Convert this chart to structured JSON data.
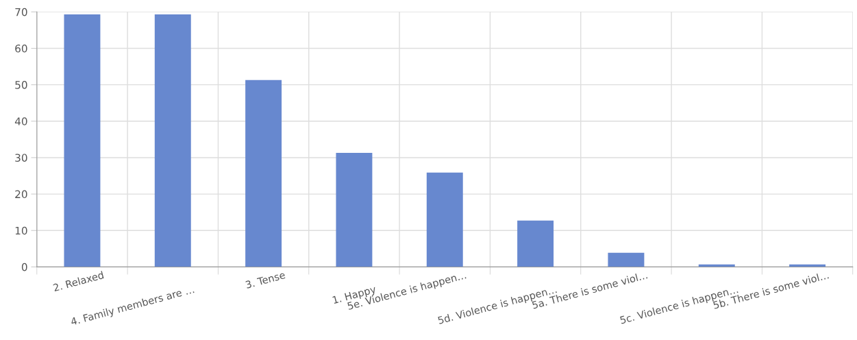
{
  "chart_data": {
    "type": "bar",
    "categories": [
      "2. Relaxed",
      "4. Family members are …",
      "3. Tense",
      "1. Happy",
      "5e. Violence is happen…",
      "5d. Violence is happen…",
      "5a. There is some viol…",
      "5c. Violence is happen…",
      "5b. There is some viol…"
    ],
    "values": [
      69.3,
      69.3,
      51.3,
      31.3,
      25.9,
      12.7,
      3.9,
      0.7,
      0.7
    ],
    "color": "#6788cf",
    "ylim": [
      0,
      70
    ],
    "yticks": [
      0,
      10,
      20,
      30,
      40,
      50,
      60,
      70
    ],
    "grid": true
  }
}
